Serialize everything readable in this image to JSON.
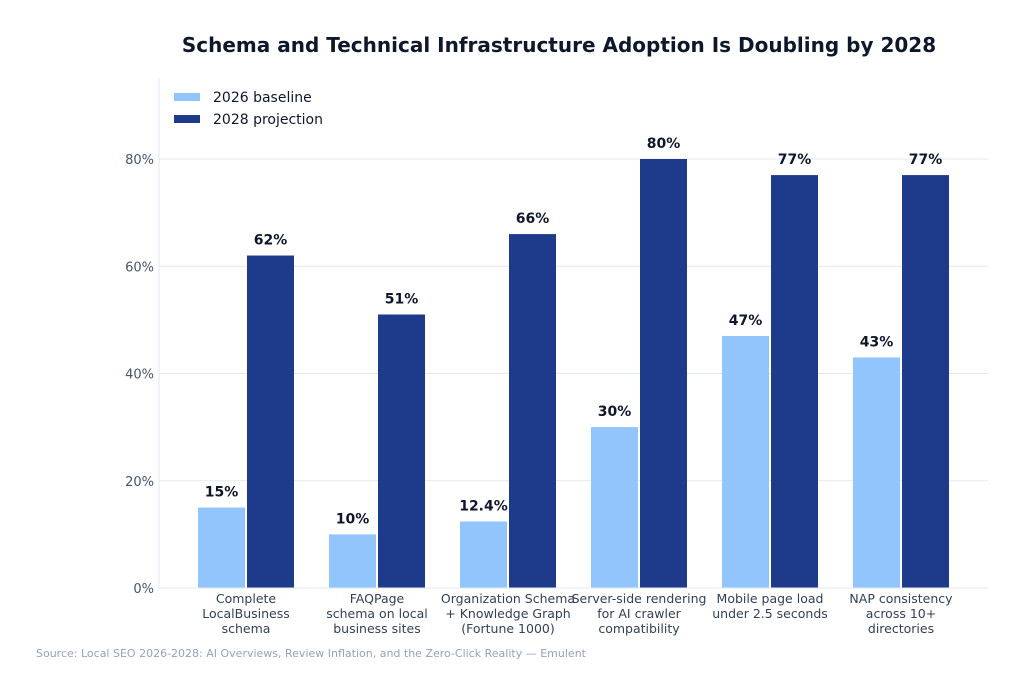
{
  "chart_data": {
    "type": "bar",
    "title": "Schema and Technical Infrastructure Adoption Is Doubling by 2028",
    "xlabel": "",
    "ylabel": "",
    "ylim": [
      0,
      95
    ],
    "yticks": [
      0,
      20,
      40,
      60,
      80
    ],
    "ytick_labels": [
      "0%",
      "20%",
      "40%",
      "60%",
      "80%"
    ],
    "grid": "horizontal",
    "legend_position": "top-left",
    "categories": [
      [
        "Complete",
        "LocalBusiness",
        "schema"
      ],
      [
        "FAQPage",
        "schema on local",
        "business sites"
      ],
      [
        "Organization Schema",
        "+ Knowledge Graph",
        "(Fortune 1000)"
      ],
      [
        "Server-side rendering",
        "for AI crawler",
        "compatibility"
      ],
      [
        "Mobile page load",
        "under 2.5 seconds"
      ],
      [
        "NAP consistency",
        "across 10+",
        "directories"
      ]
    ],
    "series": [
      {
        "name": "2026 baseline",
        "color": "#93c5fd",
        "values": [
          15,
          10,
          12.4,
          30,
          47,
          43
        ],
        "labels": [
          "15%",
          "10%",
          "12.4%",
          "30%",
          "47%",
          "43%"
        ]
      },
      {
        "name": "2028 projection",
        "color": "#1e3a8a",
        "values": [
          62,
          51,
          66,
          80,
          77,
          77
        ],
        "labels": [
          "62%",
          "51%",
          "66%",
          "80%",
          "77%",
          "77%"
        ]
      }
    ]
  },
  "source": "Source: Local SEO 2026-2028: AI Overviews, Review Inflation, and the Zero-Click Reality — Emulent"
}
